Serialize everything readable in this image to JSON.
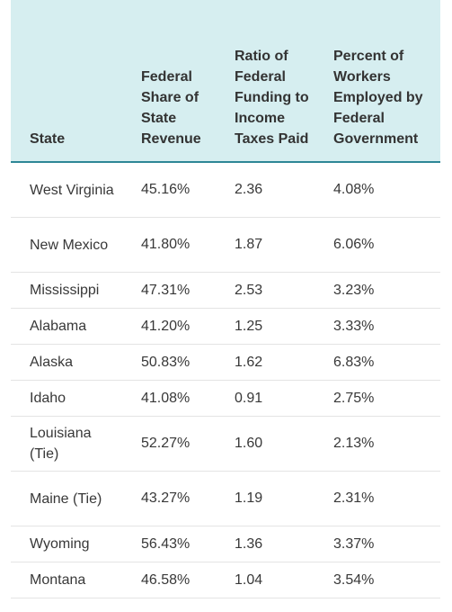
{
  "table": {
    "headers": [
      "State",
      "Federal Share of State Revenue",
      "Ratio of Federal Funding to Income Taxes Paid",
      "Percent of Workers Employed by Federal Government"
    ],
    "rows": [
      {
        "state": "West Virginia",
        "federal_share": "45.16%",
        "ratio": "2.36",
        "percent_workers": "4.08%"
      },
      {
        "state": "New Mexico",
        "federal_share": "41.80%",
        "ratio": "1.87",
        "percent_workers": "6.06%"
      },
      {
        "state": "Mississippi",
        "federal_share": "47.31%",
        "ratio": "2.53",
        "percent_workers": "3.23%"
      },
      {
        "state": "Alabama",
        "federal_share": "41.20%",
        "ratio": "1.25",
        "percent_workers": "3.33%"
      },
      {
        "state": "Alaska",
        "federal_share": "50.83%",
        "ratio": "1.62",
        "percent_workers": "6.83%"
      },
      {
        "state": "Idaho",
        "federal_share": "41.08%",
        "ratio": "0.91",
        "percent_workers": "2.75%"
      },
      {
        "state": "Louisiana (Tie)",
        "federal_share": "52.27%",
        "ratio": "1.60",
        "percent_workers": "2.13%"
      },
      {
        "state": "Maine (Tie)",
        "federal_share": "43.27%",
        "ratio": "1.19",
        "percent_workers": "2.31%"
      },
      {
        "state": "Wyoming",
        "federal_share": "56.43%",
        "ratio": "1.36",
        "percent_workers": "3.37%"
      },
      {
        "state": "Montana",
        "federal_share": "46.58%",
        "ratio": "1.04",
        "percent_workers": "3.54%"
      }
    ]
  },
  "colors": {
    "header_background": "#d6eef0",
    "header_border": "#2e8796",
    "row_divider": "#e4e4e4",
    "text": "#383838"
  }
}
